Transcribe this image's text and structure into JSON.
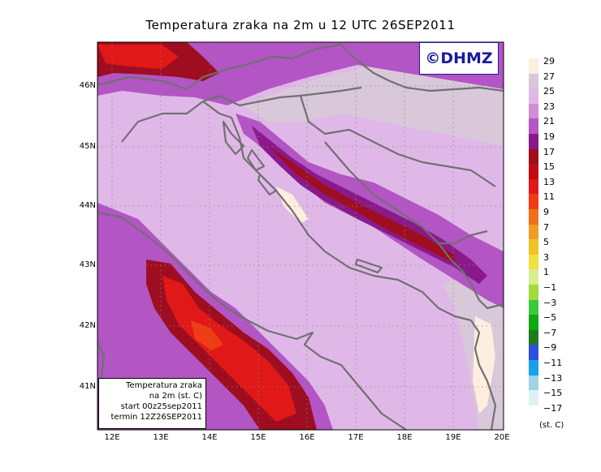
{
  "title": "Temperatura zraka na 2m u 12 UTC 26SEP2011",
  "logo": "©DHMZ",
  "lat_labels": [
    "46N",
    "45N",
    "44N",
    "43N",
    "42N",
    "41N"
  ],
  "lon_labels": [
    "12E",
    "13E",
    "14E",
    "15E",
    "16E",
    "17E",
    "18E",
    "19E",
    "20E"
  ],
  "legend": {
    "labels": [
      "29",
      "27",
      "25",
      "23",
      "21",
      "19",
      "17",
      "15",
      "13",
      "11",
      "9",
      "7",
      "5",
      "3",
      "1",
      "−1",
      "−3",
      "−5",
      "−7",
      "−9",
      "−11",
      "−13",
      "−15",
      "−17"
    ],
    "colors": [
      "#fdeee0",
      "#d9c8d9",
      "#e0b8e8",
      "#d08ed8",
      "#b355c4",
      "#8a1a8a",
      "#9e0e20",
      "#c00a14",
      "#e01818",
      "#f03c14",
      "#f07018",
      "#f09c24",
      "#f0c428",
      "#f0e040",
      "#d8ec90",
      "#a0dc3c",
      "#3cc83c",
      "#10a810",
      "#1c7c1c",
      "#2c50e0",
      "#18a0e8",
      "#a0d4e4",
      "#dcf2f4"
    ],
    "unit": "(st. C)"
  },
  "info_box": {
    "line1": "Temperatura zraka",
    "line2": "na 2m (st. C)",
    "line3": "start 00z25sep2011",
    "line4": "termin 12Z26SEP2011"
  }
}
